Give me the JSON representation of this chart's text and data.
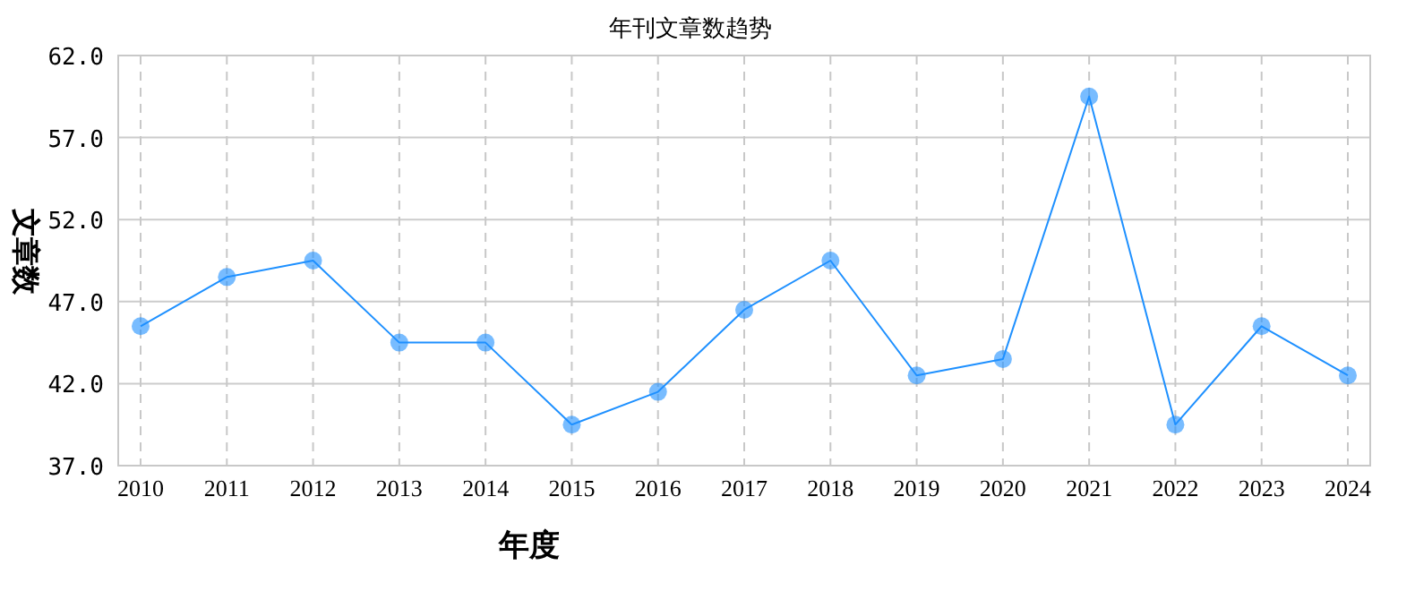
{
  "chart_data": {
    "type": "line",
    "title": "年刊文章数趋势",
    "xlabel": "年度",
    "ylabel": "文章数",
    "categories": [
      "2010",
      "2011",
      "2012",
      "2013",
      "2014",
      "2015",
      "2016",
      "2017",
      "2018",
      "2019",
      "2020",
      "2021",
      "2022",
      "2023",
      "2024"
    ],
    "series": [
      {
        "color": "#1e90ff",
        "values": [
          45.5,
          48.5,
          49.5,
          44.5,
          44.5,
          39.5,
          41.5,
          46.5,
          49.5,
          42.5,
          43.5,
          59.5,
          39.5,
          45.5,
          42.5
        ]
      }
    ],
    "ylim": [
      37,
      62
    ],
    "yticks": [
      {
        "value": 37,
        "label": "37.0"
      },
      {
        "value": 42,
        "label": "42.0"
      },
      {
        "value": 47,
        "label": "47.0"
      },
      {
        "value": 52,
        "label": "52.0"
      },
      {
        "value": 57,
        "label": "57.0"
      },
      {
        "value": 62,
        "label": "62.0"
      }
    ],
    "grid": true,
    "marker": "circle",
    "line_style": "solid"
  }
}
